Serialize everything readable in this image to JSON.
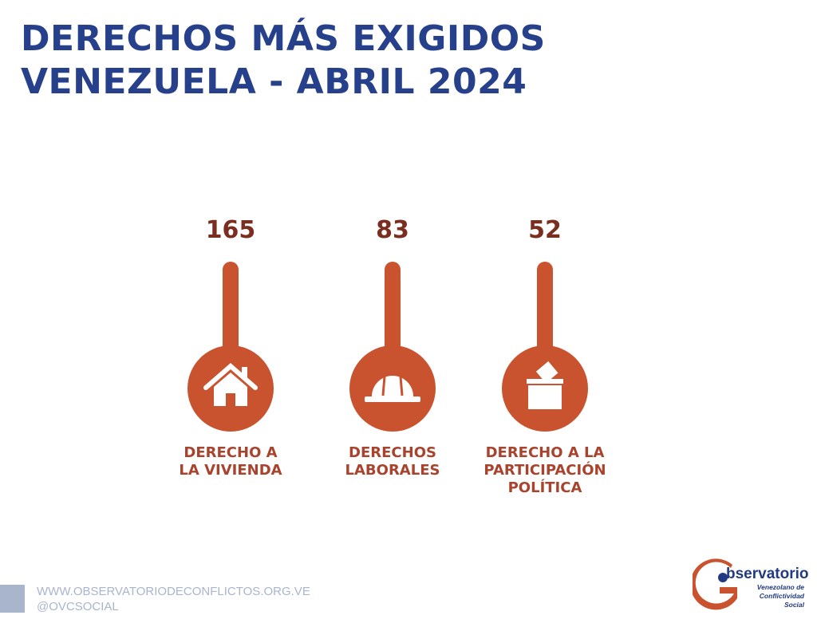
{
  "title": {
    "line1": "DERECHOS MÁS EXIGIDOS",
    "line2": "VENEZUELA - ABRIL 2024"
  },
  "chart_data": {
    "type": "bar",
    "categories": [
      "DERECHO A LA VIVIENDA",
      "DERECHOS LABORALES",
      "DERECHO A LA PARTICIPACIÓN POLÍTICA"
    ],
    "category_lines": [
      [
        "DERECHO A",
        "LA VIVIENDA"
      ],
      [
        "DERECHOS",
        "LABORALES"
      ],
      [
        "DERECHO A LA",
        "PARTICIPACIÓN",
        "POLÍTICA"
      ]
    ],
    "values": [
      165,
      83,
      52
    ],
    "icons": [
      "house-icon",
      "hard-hat-icon",
      "ballot-box-icon"
    ],
    "colors": {
      "accent": "#c9532f",
      "value_text": "#7a2e1f",
      "label_text": "#a8432d",
      "title": "#26408b"
    }
  },
  "footer": {
    "website": "WWW.OBSERVATORIODECONFLICTOS.ORG.VE",
    "social": "@OVCSOCIAL"
  },
  "logo": {
    "title": "bservatorio",
    "sub1": "Venezolano de",
    "sub2": "Conflictividad Social"
  }
}
